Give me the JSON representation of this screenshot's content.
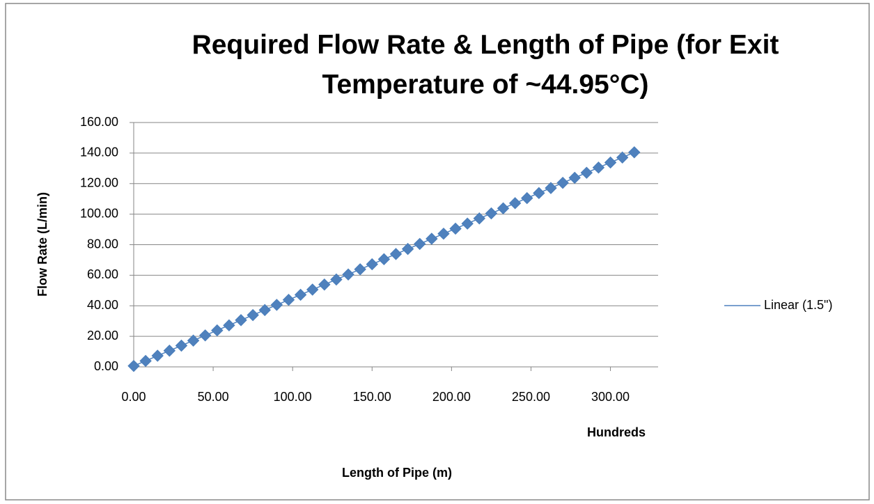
{
  "chart_data": {
    "type": "scatter",
    "title": "Required Flow Rate & Length of Pipe (for Exit Temperature of ~44.95°C)",
    "x_label": "Length of Pipe (m)",
    "x_unit_label": "Hundreds",
    "y_label": "Flow Rate (L/min)",
    "xlim": [
      0,
      330
    ],
    "ylim": [
      0,
      160
    ],
    "xticks": [
      {
        "value": 0,
        "label": "0.00"
      },
      {
        "value": 50,
        "label": "50.00"
      },
      {
        "value": 100,
        "label": "100.00"
      },
      {
        "value": 150,
        "label": "150.00"
      },
      {
        "value": 200,
        "label": "200.00"
      },
      {
        "value": 250,
        "label": "250.00"
      },
      {
        "value": 300,
        "label": "300.00"
      }
    ],
    "yticks": [
      {
        "value": 0,
        "label": "0.00"
      },
      {
        "value": 20,
        "label": "20.00"
      },
      {
        "value": 40,
        "label": "40.00"
      },
      {
        "value": 60,
        "label": "60.00"
      },
      {
        "value": 80,
        "label": "80.00"
      },
      {
        "value": 100,
        "label": "100.00"
      },
      {
        "value": 120,
        "label": "120.00"
      },
      {
        "value": 140,
        "label": "140.00"
      },
      {
        "value": 160,
        "label": "160.00"
      }
    ],
    "grid": true,
    "legend": "right",
    "trendline": {
      "name": "Linear (1.5\")",
      "color": "#4f81bd"
    },
    "series": [
      {
        "color": "#4f81bd",
        "x": [
          0,
          7.5,
          15,
          22.5,
          30,
          37.5,
          45,
          52.5,
          60,
          67.5,
          75,
          82.5,
          90,
          97.5,
          105,
          112.5,
          120,
          127.5,
          135,
          142.5,
          150,
          157.5,
          165,
          172.5,
          180,
          187.5,
          195,
          202.5,
          210,
          217.5,
          225,
          232.5,
          240,
          247.5,
          255,
          262.5,
          270,
          277.5,
          285,
          292.5,
          300,
          307.5,
          315
        ],
        "values": [
          0.6,
          3.9,
          7.3,
          10.6,
          13.9,
          17.2,
          20.6,
          23.9,
          27.2,
          30.6,
          33.9,
          37.2,
          40.6,
          43.9,
          47.2,
          50.6,
          53.9,
          57.2,
          60.5,
          63.9,
          67.2,
          70.5,
          73.9,
          77.2,
          80.5,
          83.9,
          87.2,
          90.5,
          93.8,
          97.2,
          100.5,
          103.8,
          107.2,
          110.5,
          113.8,
          117.1,
          120.5,
          123.8,
          127.1,
          130.5,
          133.8,
          137.1,
          140.5
        ]
      }
    ]
  }
}
